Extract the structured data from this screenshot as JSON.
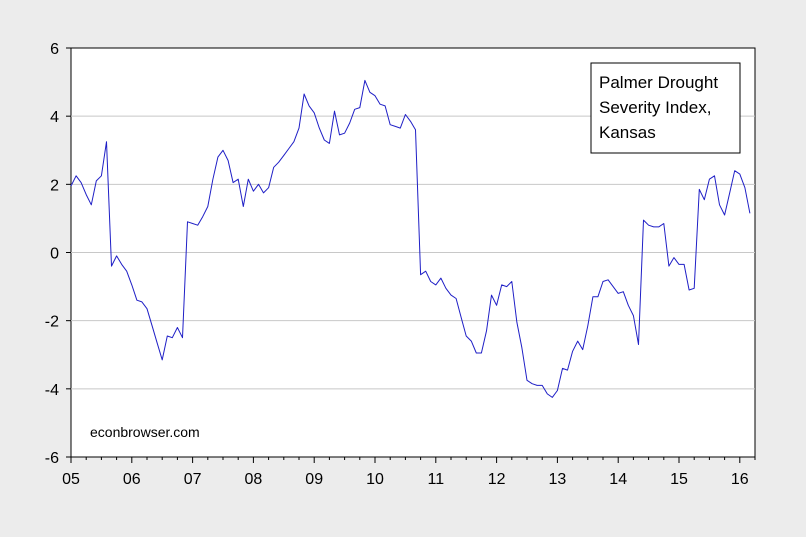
{
  "chart_data": {
    "type": "line",
    "title": "",
    "xlabel": "",
    "ylabel": "",
    "legend_box_lines": [
      "Palmer Drought",
      "Severity Index,",
      "Kansas"
    ],
    "legend_placement": "top-right",
    "watermark": "econbrowser.com",
    "x_range": [
      2005.0,
      2016.25
    ],
    "ylim": [
      -6,
      6
    ],
    "y_ticks": [
      -6,
      -4,
      -2,
      0,
      2,
      4,
      6
    ],
    "x_ticks": [
      {
        "value": 2005,
        "label": "05"
      },
      {
        "value": 2006,
        "label": "06"
      },
      {
        "value": 2007,
        "label": "07"
      },
      {
        "value": 2008,
        "label": "08"
      },
      {
        "value": 2009,
        "label": "09"
      },
      {
        "value": 2010,
        "label": "10"
      },
      {
        "value": 2011,
        "label": "11"
      },
      {
        "value": 2012,
        "label": "12"
      },
      {
        "value": 2013,
        "label": "13"
      },
      {
        "value": 2014,
        "label": "14"
      },
      {
        "value": 2015,
        "label": "15"
      },
      {
        "value": 2016,
        "label": "16"
      }
    ],
    "grid": "horizontal",
    "colors": {
      "series": "#1f1fc6",
      "grid": "#c8c8c8",
      "plot_background": "#ffffff",
      "page_background": "#ececec"
    },
    "series": [
      {
        "x_start": "2005-01",
        "frequency": "monthly",
        "values": [
          1.95,
          2.25,
          2.05,
          1.7,
          1.4,
          2.1,
          2.25,
          3.25,
          -0.4,
          -0.1,
          -0.35,
          -0.55,
          -0.95,
          -1.4,
          -1.45,
          -1.65,
          -2.15,
          -2.65,
          -3.15,
          -2.45,
          -2.5,
          -2.2,
          -2.5,
          0.9,
          0.85,
          0.8,
          1.05,
          1.35,
          2.15,
          2.8,
          3.0,
          2.7,
          2.05,
          2.15,
          1.35,
          2.15,
          1.8,
          2.0,
          1.75,
          1.9,
          2.5,
          2.65,
          2.85,
          3.05,
          3.25,
          3.65,
          4.65,
          4.3,
          4.1,
          3.65,
          3.3,
          3.2,
          4.15,
          3.45,
          3.5,
          3.8,
          4.2,
          4.25,
          5.05,
          4.7,
          4.6,
          4.35,
          4.3,
          3.75,
          3.7,
          3.65,
          4.05,
          3.85,
          3.6,
          -0.65,
          -0.55,
          -0.85,
          -0.95,
          -0.75,
          -1.05,
          -1.25,
          -1.35,
          -1.9,
          -2.45,
          -2.6,
          -2.95,
          -2.95,
          -2.3,
          -1.25,
          -1.55,
          -0.95,
          -1.0,
          -0.85,
          -2.05,
          -2.8,
          -3.75,
          -3.85,
          -3.9,
          -3.9,
          -4.15,
          -4.25,
          -4.05,
          -3.4,
          -3.45,
          -2.9,
          -2.6,
          -2.85,
          -2.15,
          -1.3,
          -1.3,
          -0.85,
          -0.8,
          -1.0,
          -1.2,
          -1.15,
          -1.55,
          -1.85,
          -2.7,
          0.95,
          0.8,
          0.75,
          0.75,
          0.85,
          -0.4,
          -0.15,
          -0.35,
          -0.35,
          -1.1,
          -1.05,
          1.85,
          1.55,
          2.15,
          2.25,
          1.4,
          1.1,
          1.75,
          2.4,
          2.3,
          1.9,
          1.15
        ]
      }
    ]
  }
}
